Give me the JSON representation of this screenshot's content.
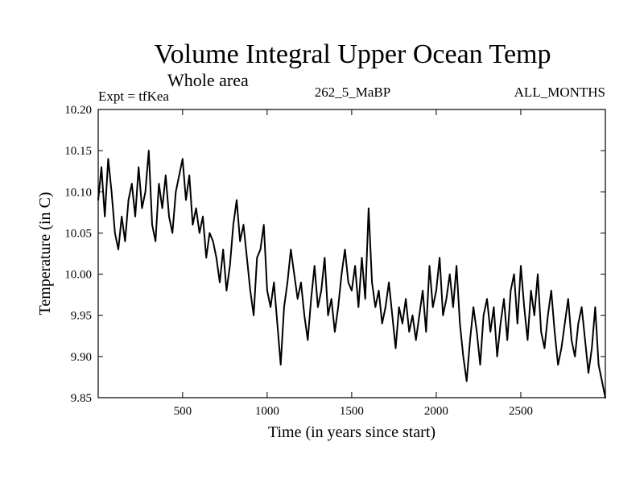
{
  "chart_data": {
    "type": "line",
    "title": "Volume Integral Upper Ocean Temp",
    "subtitle": "Whole area",
    "experiment": "Expt = tfKea",
    "run_label": "262_5_MaBP",
    "period_label": "ALL_MONTHS",
    "xlabel": "Time (in years since start)",
    "ylabel": "Temperature (in C)",
    "xlim": [
      1,
      3000
    ],
    "ylim": [
      9.85,
      10.2
    ],
    "x_ticks": [
      500,
      1000,
      1500,
      2000,
      2500
    ],
    "x_tick_labels": [
      "500",
      "1000",
      "1500",
      "2000",
      "2500"
    ],
    "y_ticks": [
      9.85,
      9.9,
      9.95,
      10.0,
      10.05,
      10.1,
      10.15,
      10.2
    ],
    "y_tick_labels": [
      "9.85",
      "9.90",
      "9.95",
      "10.00",
      "10.05",
      "10.10",
      "10.15",
      "10.20"
    ],
    "grid": false,
    "series": [
      {
        "color": "#000000",
        "x": [
          1,
          20,
          40,
          60,
          80,
          100,
          120,
          140,
          160,
          180,
          200,
          220,
          240,
          260,
          280,
          300,
          320,
          340,
          360,
          380,
          400,
          420,
          440,
          460,
          480,
          500,
          520,
          540,
          560,
          580,
          600,
          620,
          640,
          660,
          680,
          700,
          720,
          740,
          760,
          780,
          800,
          820,
          840,
          860,
          880,
          900,
          920,
          940,
          960,
          980,
          1000,
          1020,
          1040,
          1060,
          1080,
          1100,
          1120,
          1140,
          1160,
          1180,
          1200,
          1220,
          1240,
          1260,
          1280,
          1300,
          1320,
          1340,
          1360,
          1380,
          1400,
          1420,
          1440,
          1460,
          1480,
          1500,
          1520,
          1540,
          1560,
          1580,
          1600,
          1620,
          1640,
          1660,
          1680,
          1700,
          1720,
          1740,
          1760,
          1780,
          1800,
          1820,
          1840,
          1860,
          1880,
          1900,
          1920,
          1940,
          1960,
          1980,
          2000,
          2020,
          2040,
          2060,
          2080,
          2100,
          2120,
          2140,
          2160,
          2180,
          2200,
          2220,
          2240,
          2260,
          2280,
          2300,
          2320,
          2340,
          2360,
          2380,
          2400,
          2420,
          2440,
          2460,
          2480,
          2500,
          2520,
          2540,
          2560,
          2580,
          2600,
          2620,
          2640,
          2660,
          2680,
          2700,
          2720,
          2740,
          2760,
          2780,
          2800,
          2820,
          2840,
          2860,
          2880,
          2900,
          2920,
          2940,
          2960,
          2980,
          3000
        ],
        "values": [
          10.09,
          10.13,
          10.07,
          10.14,
          10.1,
          10.05,
          10.03,
          10.07,
          10.04,
          10.09,
          10.11,
          10.07,
          10.13,
          10.08,
          10.1,
          10.15,
          10.06,
          10.04,
          10.11,
          10.08,
          10.12,
          10.07,
          10.05,
          10.1,
          10.12,
          10.14,
          10.09,
          10.12,
          10.06,
          10.08,
          10.05,
          10.07,
          10.02,
          10.05,
          10.04,
          10.02,
          9.99,
          10.03,
          9.98,
          10.01,
          10.06,
          10.09,
          10.04,
          10.06,
          10.02,
          9.98,
          9.95,
          10.02,
          10.03,
          10.06,
          9.98,
          9.96,
          9.99,
          9.94,
          9.89,
          9.96,
          9.99,
          10.03,
          10.0,
          9.97,
          9.99,
          9.95,
          9.92,
          9.97,
          10.01,
          9.96,
          9.98,
          10.02,
          9.95,
          9.97,
          9.93,
          9.96,
          10.0,
          10.03,
          9.99,
          9.98,
          10.01,
          9.96,
          10.02,
          9.97,
          10.08,
          9.99,
          9.96,
          9.98,
          9.94,
          9.96,
          9.99,
          9.95,
          9.91,
          9.96,
          9.94,
          9.97,
          9.93,
          9.95,
          9.92,
          9.95,
          9.98,
          9.93,
          10.01,
          9.96,
          9.98,
          10.02,
          9.95,
          9.97,
          10.0,
          9.96,
          10.01,
          9.94,
          9.9,
          9.87,
          9.92,
          9.96,
          9.93,
          9.89,
          9.95,
          9.97,
          9.93,
          9.96,
          9.9,
          9.94,
          9.97,
          9.92,
          9.98,
          10.0,
          9.94,
          10.01,
          9.96,
          9.92,
          9.98,
          9.95,
          10.0,
          9.93,
          9.91,
          9.95,
          9.98,
          9.93,
          9.89,
          9.91,
          9.94,
          9.97,
          9.92,
          9.9,
          9.94,
          9.96,
          9.92,
          9.88,
          9.91,
          9.96,
          9.89,
          9.87,
          9.85
        ]
      }
    ]
  }
}
